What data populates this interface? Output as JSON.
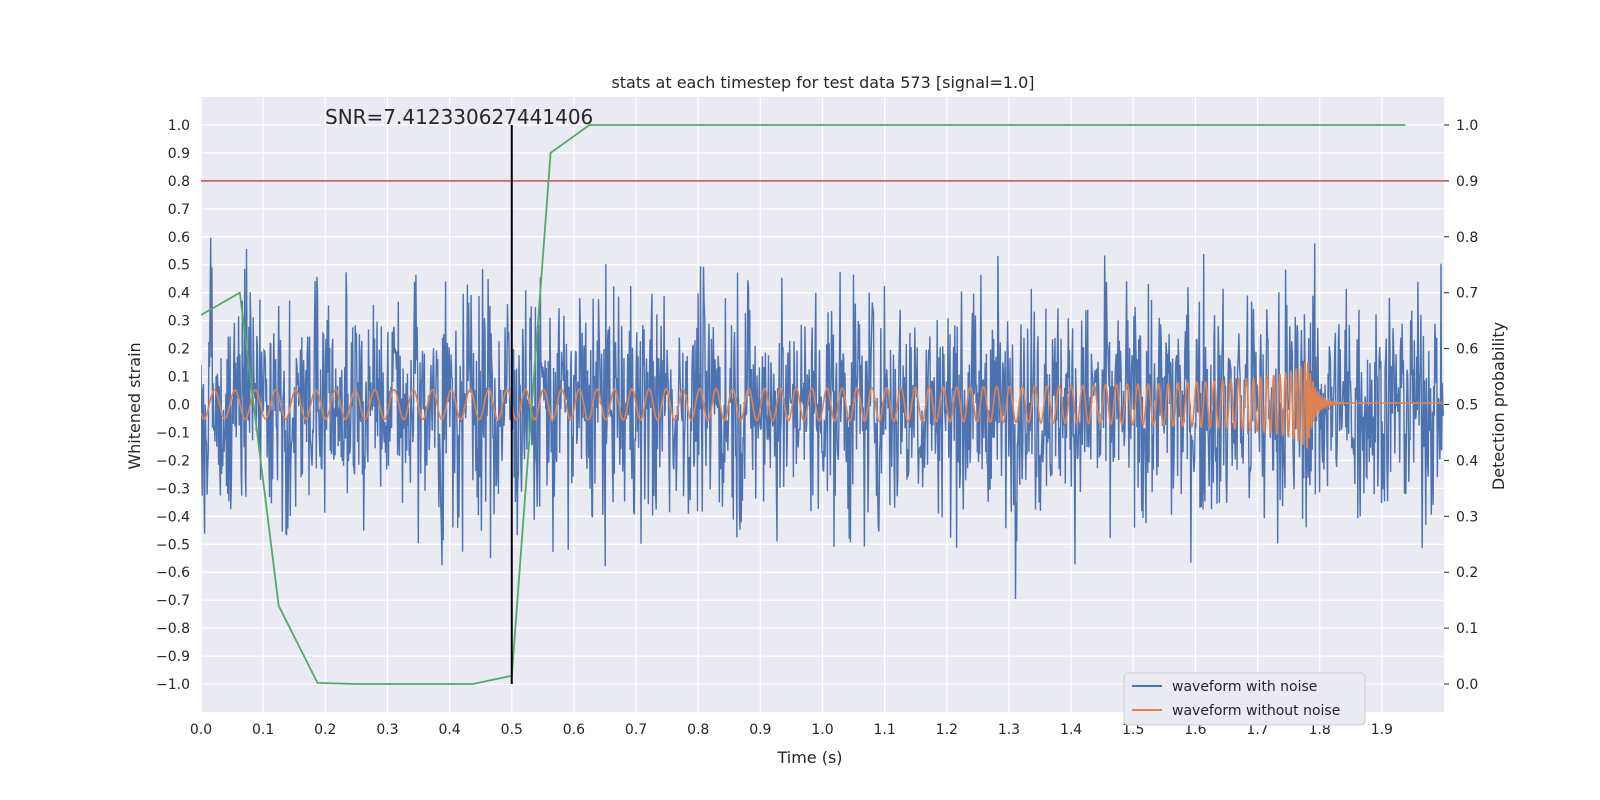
{
  "chart_data": {
    "type": "line",
    "title": "stats at each timestep for test data 573 [signal=1.0]",
    "xlabel": "Time (s)",
    "ylabel": "Whitened strain",
    "y2label": "Detection probability",
    "xlim": [
      0.0,
      2.0
    ],
    "ylim": [
      -1.1,
      1.1
    ],
    "y2lim": [
      -0.05,
      1.05
    ],
    "x_ticks": [
      "0.0",
      "0.1",
      "0.2",
      "0.3",
      "0.4",
      "0.5",
      "0.6",
      "0.7",
      "0.8",
      "0.9",
      "1.0",
      "1.1",
      "1.2",
      "1.3",
      "1.4",
      "1.5",
      "1.6",
      "1.7",
      "1.8",
      "1.9"
    ],
    "y_ticks": [
      "1.0",
      "0.9",
      "0.8",
      "0.7",
      "0.6",
      "0.5",
      "0.4",
      "0.3",
      "0.2",
      "0.1",
      "0.0",
      "-0.1",
      "-0.2",
      "-0.3",
      "-0.4",
      "-0.5",
      "-0.6",
      "-0.7",
      "-0.8",
      "-0.9",
      "-1.0"
    ],
    "y2_ticks": [
      "1.0",
      "0.9",
      "0.8",
      "0.7",
      "0.6",
      "0.5",
      "0.4",
      "0.3",
      "0.2",
      "0.1",
      "0.0"
    ],
    "grid": true,
    "annotation": "SNR=7.412330627441406",
    "vline_x": 0.5,
    "hline_y": 0.78,
    "noisy_waveform": {
      "name": "waveform with noise",
      "color": "#4c72b0",
      "noise_amplitude": 0.28,
      "signal_included": true
    },
    "clean_waveform": {
      "name": "waveform without noise",
      "color": "#dd8452",
      "f0_hz": 30,
      "merger_time": 1.78,
      "amp_start": 0.035,
      "amp_peak": 0.16
    },
    "detection_probability": {
      "color": "#55a868",
      "x": [
        0.0,
        0.0625,
        0.125,
        0.1875,
        0.25,
        0.3125,
        0.375,
        0.4375,
        0.5,
        0.5625,
        0.625,
        0.6875,
        0.75,
        0.8125,
        0.875,
        0.9375,
        1.0,
        1.0625,
        1.125,
        1.1875,
        1.25,
        1.3125,
        1.375,
        1.4375,
        1.5,
        1.5625,
        1.625,
        1.6875,
        1.75,
        1.8125,
        1.875,
        1.9375
      ],
      "y": [
        0.66,
        0.7,
        0.14,
        0.002,
        0.0,
        0.0,
        0.0,
        0.0,
        0.015,
        0.95,
        1.0,
        1.0,
        1.0,
        1.0,
        1.0,
        1.0,
        1.0,
        1.0,
        1.0,
        1.0,
        1.0,
        1.0,
        1.0,
        1.0,
        1.0,
        1.0,
        1.0,
        1.0,
        1.0,
        1.0,
        1.0,
        1.0
      ]
    },
    "legend": [
      "waveform with noise",
      "waveform without noise"
    ],
    "legend_position": "bottom-right",
    "colors": {
      "axes_bg": "#eaeaf2",
      "grid": "#ffffff",
      "threshold": "#c44e52",
      "vline": "#000000"
    }
  }
}
